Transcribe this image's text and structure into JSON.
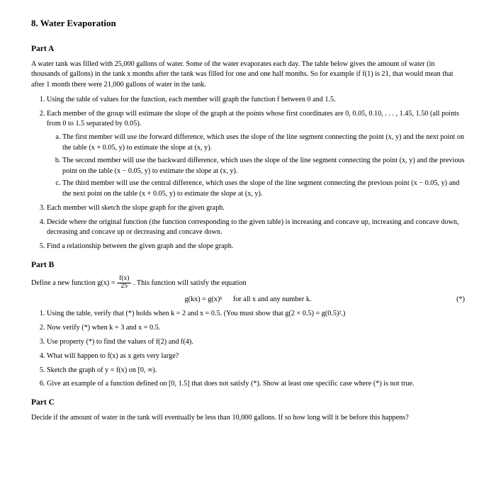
{
  "title": "8. Water Evaporation",
  "partA": {
    "heading": "Part A",
    "intro1": "A water tank was filled with 25,000 gallons of water. Some of the water evaporates each day. The table below gives the amount of water (in thousands of gallons) in the tank x months after the tank was filled for one and one half months. So for example if f(1) is 21, that would mean that after 1 month there were 21,000 gallons of water in the tank.",
    "items": {
      "i1": "Using the table of values for the function, each member will graph the function f between 0 and 1.5.",
      "i2": "Each member of the group will estimate the slope of the graph at the points whose first coordinates are 0, 0.05, 0.10, . . . , 1.45, 1.50 (all points from 0 to 1.5 separated by 0.05).",
      "i2a": "The first member will use the forward difference, which uses the slope of the line segment connecting the point (x, y) and the next point on the table (x + 0.05, y) to estimate the slope at (x, y).",
      "i2b": "The second member will use the backward difference, which uses the slope of the line segment connecting the point (x, y) and the previous point on the table (x − 0.05, y) to estimate the slope at (x, y).",
      "i2c": "The third member will use the central difference, which uses the slope of the line segment connecting the previous point (x − 0.05, y) and the next point on the table (x + 0.05, y) to estimate the slope at (x, y).",
      "i3": "Each member will sketch the slope graph for the given graph.",
      "i4": "Decide where the original function (the function corresponding to the given table) is increasing and concave up, increasing and concave down, decreasing and concave up or decreasing and concave down.",
      "i5": "Find a relationship between the given graph and the slope graph."
    }
  },
  "partB": {
    "heading": "Part B",
    "def_pre": "Define a new function g(x) = ",
    "frac_top": "f(x)",
    "frac_bot": "25",
    "def_post": ". This function will satisfy the equation",
    "eq": "g(kx) = g(x)ᵏ   for all x and any number k.",
    "eq_tag": "(*)",
    "items": {
      "i1": "Using the table, verify that (*) holds when k = 2 and x = 0.5. (You must show that g(2 × 0.5) = g(0.5)².)",
      "i2": "Now verify (*) when k = 3 and x = 0.5.",
      "i3": "Use property (*) to find the values of f(2) and f(4).",
      "i4": "What will happen to f(x) as x gets very large?",
      "i5": "Sketch the graph of y = f(x) on [0, ∞).",
      "i6": "Give an example of a function defined on [0, 1.5] that does not satisfy (*). Show at least one specific case where (*) is not true."
    }
  },
  "partC": {
    "heading": "Part C",
    "text": "Decide if the amount of water in the tank will eventually be less than 10,000 gallons. If so how long will it be before this happens?"
  }
}
